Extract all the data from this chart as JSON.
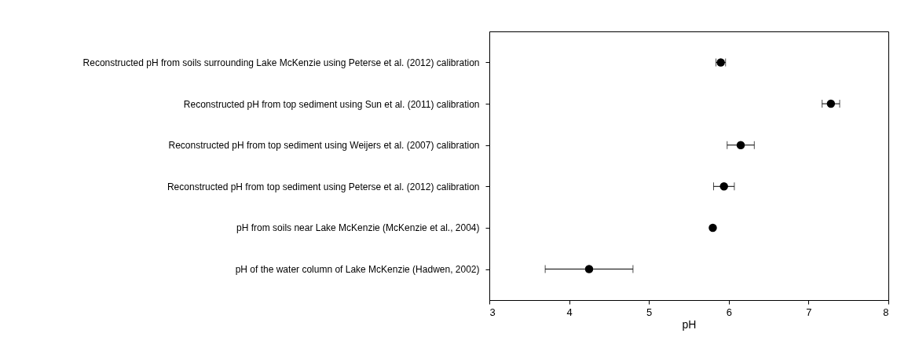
{
  "chart_data": {
    "type": "scatter",
    "orientation": "horizontal",
    "categories": [
      "Reconstructed pH from soils surrounding Lake McKenzie using Peterse et al. (2012) calibration",
      "Reconstructed pH from top sediment using Sun et al. (2011) calibration",
      "Reconstructed pH from top sediment using Weijers et al. (2007) calibration",
      "Reconstructed pH from top sediment using Peterse et al. (2012) calibration",
      "pH from soils near Lake McKenzie (McKenzie et al., 2004)",
      "pH of the water column of Lake McKenzie (Hadwen, 2002)"
    ],
    "values": [
      5.9,
      7.28,
      6.15,
      5.94,
      5.8,
      4.25
    ],
    "errors": [
      0.06,
      0.11,
      0.17,
      0.13,
      null,
      0.55
    ],
    "color": "#000000",
    "marker": "circle",
    "xlabel": "pH",
    "xlim": [
      3,
      8
    ],
    "xticks": [
      3,
      4,
      5,
      6,
      7,
      8
    ],
    "grid": false
  }
}
